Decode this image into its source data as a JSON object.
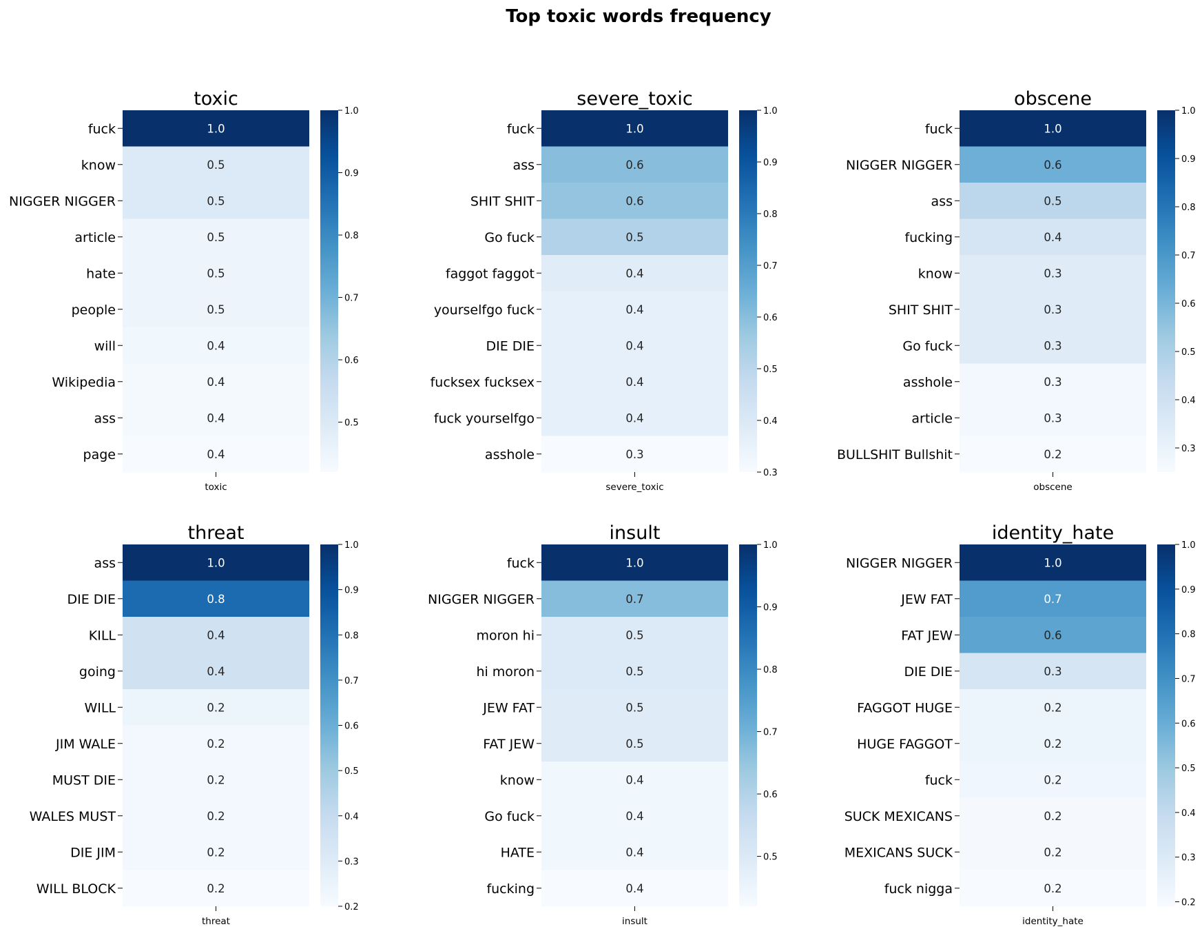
{
  "suptitle": "Top toxic words frequency",
  "colormap": [
    "#f7fbff",
    "#deebf7",
    "#c6dbef",
    "#9ecae1",
    "#6baed6",
    "#4292c6",
    "#2171b5",
    "#08519c",
    "#08306b"
  ],
  "chart_data": [
    {
      "type": "heatmap",
      "title": "toxic",
      "xlabel": "toxic",
      "categories": [
        "fuck",
        "know",
        "NIGGER NIGGER",
        "article",
        "hate",
        "people",
        "will",
        "Wikipedia",
        "ass",
        "page"
      ],
      "values": [
        1.0,
        0.5,
        0.5,
        0.45,
        0.45,
        0.45,
        0.44,
        0.43,
        0.43,
        0.42
      ],
      "labels": [
        "1.0",
        "0.5",
        "0.5",
        "0.5",
        "0.5",
        "0.5",
        "0.4",
        "0.4",
        "0.4",
        "0.4"
      ],
      "vrange": [
        0.42,
        1.0
      ],
      "colorbar_ticks": [
        "0.5",
        "0.6",
        "0.7",
        "0.8",
        "0.9",
        "1.0"
      ]
    },
    {
      "type": "heatmap",
      "title": "severe_toxic",
      "xlabel": "severe_toxic",
      "categories": [
        "fuck",
        "ass",
        "SHIT SHIT",
        "Go fuck",
        "faggot faggot",
        "yourselfgo fuck",
        "DIE DIE",
        "fucksex fucksex",
        "fuck yourselfgo",
        "asshole"
      ],
      "values": [
        1.0,
        0.6,
        0.58,
        0.52,
        0.38,
        0.36,
        0.36,
        0.36,
        0.36,
        0.3
      ],
      "labels": [
        "1.0",
        "0.6",
        "0.6",
        "0.5",
        "0.4",
        "0.4",
        "0.4",
        "0.4",
        "0.4",
        "0.3"
      ],
      "vrange": [
        0.3,
        1.0
      ],
      "colorbar_ticks": [
        "0.3",
        "0.4",
        "0.5",
        "0.6",
        "0.7",
        "0.8",
        "0.9",
        "1.0"
      ]
    },
    {
      "type": "heatmap",
      "title": "obscene",
      "xlabel": "obscene",
      "categories": [
        "fuck",
        "NIGGER NIGGER",
        "ass",
        "fucking",
        "know",
        "SHIT SHIT",
        "Go fuck",
        "asshole",
        "article",
        "BULLSHIT Bullshit"
      ],
      "values": [
        1.0,
        0.62,
        0.46,
        0.38,
        0.34,
        0.34,
        0.34,
        0.27,
        0.27,
        0.25
      ],
      "labels": [
        "1.0",
        "0.6",
        "0.5",
        "0.4",
        "0.3",
        "0.3",
        "0.3",
        "0.3",
        "0.3",
        "0.2"
      ],
      "vrange": [
        0.25,
        1.0
      ],
      "colorbar_ticks": [
        "0.3",
        "0.4",
        "0.5",
        "0.6",
        "0.7",
        "0.8",
        "0.9",
        "1.0"
      ]
    },
    {
      "type": "heatmap",
      "title": "threat",
      "xlabel": "threat",
      "categories": [
        "ass",
        "DIE DIE",
        "KILL",
        "going",
        "WILL",
        "JIM WALE",
        "MUST DIE",
        "WALES MUST",
        "DIE JIM",
        "WILL BLOCK"
      ],
      "values": [
        1.0,
        0.82,
        0.36,
        0.36,
        0.24,
        0.22,
        0.22,
        0.22,
        0.22,
        0.2
      ],
      "labels": [
        "1.0",
        "0.8",
        "0.4",
        "0.4",
        "0.2",
        "0.2",
        "0.2",
        "0.2",
        "0.2",
        "0.2"
      ],
      "vrange": [
        0.2,
        1.0
      ],
      "colorbar_ticks": [
        "0.2",
        "0.3",
        "0.4",
        "0.5",
        "0.6",
        "0.7",
        "0.8",
        "0.9",
        "1.0"
      ]
    },
    {
      "type": "heatmap",
      "title": "insult",
      "xlabel": "insult",
      "categories": [
        "fuck",
        "NIGGER NIGGER",
        "moron hi",
        "hi moron",
        "JEW FAT",
        "FAT JEW",
        "know",
        "Go fuck",
        "HATE",
        "fucking"
      ],
      "values": [
        1.0,
        0.67,
        0.5,
        0.5,
        0.49,
        0.49,
        0.44,
        0.44,
        0.44,
        0.42
      ],
      "labels": [
        "1.0",
        "0.7",
        "0.5",
        "0.5",
        "0.5",
        "0.5",
        "0.4",
        "0.4",
        "0.4",
        "0.4"
      ],
      "vrange": [
        0.42,
        1.0
      ],
      "colorbar_ticks": [
        "0.5",
        "0.6",
        "0.7",
        "0.8",
        "0.9",
        "1.0"
      ]
    },
    {
      "type": "heatmap",
      "title": "identity_hate",
      "xlabel": "identity_hate",
      "categories": [
        "NIGGER NIGGER",
        "JEW FAT",
        "FAT JEW",
        "DIE DIE",
        "FAGGOT HUGE",
        "HUGE FAGGOT",
        "fuck",
        "SUCK MEXICANS",
        "MEXICANS SUCK",
        "fuck nigga"
      ],
      "values": [
        1.0,
        0.66,
        0.63,
        0.33,
        0.23,
        0.23,
        0.22,
        0.2,
        0.2,
        0.19
      ],
      "labels": [
        "1.0",
        "0.7",
        "0.6",
        "0.3",
        "0.2",
        "0.2",
        "0.2",
        "0.2",
        "0.2",
        "0.2"
      ],
      "vrange": [
        0.19,
        1.0
      ],
      "colorbar_ticks": [
        "0.2",
        "0.3",
        "0.4",
        "0.5",
        "0.6",
        "0.7",
        "0.8",
        "0.9",
        "1.0"
      ]
    }
  ]
}
